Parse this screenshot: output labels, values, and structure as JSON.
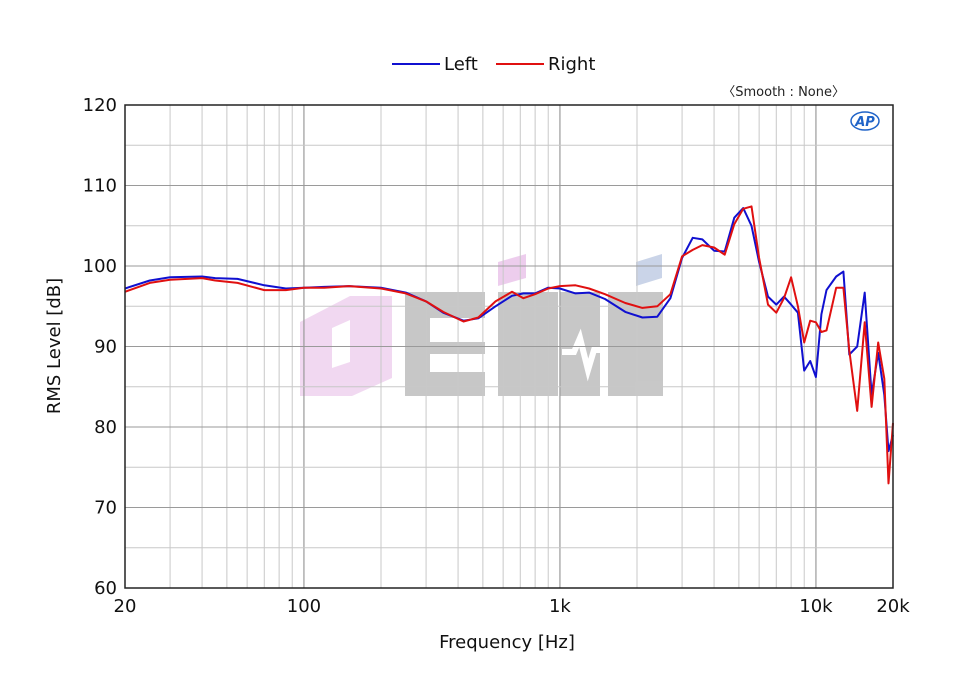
{
  "legend": {
    "left_label": "Left",
    "right_label": "Right"
  },
  "smooth_label": "〈Smooth : None〉",
  "ap_logo_text": "AP",
  "chart_data": {
    "type": "line",
    "xscale": "log",
    "xlim": [
      20,
      20000
    ],
    "ylim": [
      60,
      120
    ],
    "xlabel": "Frequency [Hz]",
    "ylabel": "RMS Level [dB]",
    "x_ticks": [
      {
        "value": 20,
        "label": "20"
      },
      {
        "value": 100,
        "label": "100"
      },
      {
        "value": 1000,
        "label": "1k"
      },
      {
        "value": 10000,
        "label": "10k"
      },
      {
        "value": 20000,
        "label": "20k"
      }
    ],
    "y_ticks": [
      {
        "value": 60,
        "label": "60"
      },
      {
        "value": 70,
        "label": "70"
      },
      {
        "value": 80,
        "label": "80"
      },
      {
        "value": 90,
        "label": "90"
      },
      {
        "value": 100,
        "label": "100"
      },
      {
        "value": 110,
        "label": "110"
      },
      {
        "value": 120,
        "label": "120"
      }
    ],
    "grid": true,
    "legend_position": "top-center",
    "series": [
      {
        "name": "Left",
        "color": "#1010d0",
        "points": [
          [
            20,
            97.2
          ],
          [
            25,
            98.2
          ],
          [
            30,
            98.6
          ],
          [
            40,
            98.7
          ],
          [
            45,
            98.5
          ],
          [
            55,
            98.4
          ],
          [
            70,
            97.6
          ],
          [
            85,
            97.2
          ],
          [
            100,
            97.3
          ],
          [
            120,
            97.4
          ],
          [
            150,
            97.5
          ],
          [
            200,
            97.3
          ],
          [
            250,
            96.7
          ],
          [
            300,
            95.6
          ],
          [
            350,
            94.2
          ],
          [
            420,
            93.2
          ],
          [
            480,
            93.5
          ],
          [
            560,
            95.0
          ],
          [
            650,
            96.3
          ],
          [
            720,
            96.6
          ],
          [
            800,
            96.6
          ],
          [
            900,
            97.3
          ],
          [
            1000,
            97.2
          ],
          [
            1150,
            96.6
          ],
          [
            1300,
            96.7
          ],
          [
            1500,
            95.9
          ],
          [
            1800,
            94.3
          ],
          [
            2100,
            93.6
          ],
          [
            2400,
            93.7
          ],
          [
            2700,
            96.0
          ],
          [
            3000,
            101.0
          ],
          [
            3300,
            103.5
          ],
          [
            3600,
            103.3
          ],
          [
            4000,
            101.9
          ],
          [
            4400,
            101.8
          ],
          [
            4800,
            106.0
          ],
          [
            5200,
            107.2
          ],
          [
            5600,
            105.0
          ],
          [
            6000,
            100.5
          ],
          [
            6500,
            96.2
          ],
          [
            7000,
            95.2
          ],
          [
            7500,
            96.2
          ],
          [
            8000,
            95.2
          ],
          [
            8500,
            94.2
          ],
          [
            9000,
            87.0
          ],
          [
            9500,
            88.2
          ],
          [
            10000,
            86.2
          ],
          [
            10500,
            94.0
          ],
          [
            11000,
            97.0
          ],
          [
            12000,
            98.7
          ],
          [
            12800,
            99.3
          ],
          [
            13500,
            89.0
          ],
          [
            14500,
            90.0
          ],
          [
            15500,
            96.7
          ],
          [
            16500,
            84.0
          ],
          [
            17500,
            89.2
          ],
          [
            18500,
            84.0
          ],
          [
            19200,
            77.0
          ],
          [
            20000,
            79.0
          ]
        ]
      },
      {
        "name": "Right",
        "color": "#e01010",
        "points": [
          [
            20,
            96.8
          ],
          [
            25,
            97.9
          ],
          [
            30,
            98.3
          ],
          [
            40,
            98.5
          ],
          [
            45,
            98.2
          ],
          [
            55,
            97.9
          ],
          [
            70,
            97.0
          ],
          [
            85,
            97.0
          ],
          [
            100,
            97.3
          ],
          [
            120,
            97.3
          ],
          [
            150,
            97.5
          ],
          [
            200,
            97.2
          ],
          [
            250,
            96.6
          ],
          [
            300,
            95.6
          ],
          [
            350,
            94.3
          ],
          [
            420,
            93.1
          ],
          [
            480,
            93.6
          ],
          [
            560,
            95.6
          ],
          [
            650,
            96.8
          ],
          [
            720,
            96.0
          ],
          [
            800,
            96.5
          ],
          [
            900,
            97.2
          ],
          [
            1000,
            97.5
          ],
          [
            1150,
            97.6
          ],
          [
            1300,
            97.2
          ],
          [
            1500,
            96.5
          ],
          [
            1800,
            95.4
          ],
          [
            2100,
            94.8
          ],
          [
            2400,
            95.0
          ],
          [
            2700,
            96.5
          ],
          [
            3000,
            101.2
          ],
          [
            3300,
            102.0
          ],
          [
            3600,
            102.6
          ],
          [
            4000,
            102.3
          ],
          [
            4400,
            101.4
          ],
          [
            4800,
            105.2
          ],
          [
            5200,
            107.1
          ],
          [
            5600,
            107.4
          ],
          [
            6000,
            101.0
          ],
          [
            6500,
            95.2
          ],
          [
            7000,
            94.2
          ],
          [
            7500,
            96.0
          ],
          [
            8000,
            98.6
          ],
          [
            8500,
            95.0
          ],
          [
            9000,
            90.5
          ],
          [
            9500,
            93.2
          ],
          [
            10000,
            93.0
          ],
          [
            10500,
            91.8
          ],
          [
            11000,
            92.0
          ],
          [
            12000,
            97.3
          ],
          [
            12800,
            97.3
          ],
          [
            13500,
            89.5
          ],
          [
            14500,
            82.0
          ],
          [
            15500,
            93.0
          ],
          [
            16500,
            82.5
          ],
          [
            17500,
            90.5
          ],
          [
            18500,
            86.0
          ],
          [
            19200,
            73.0
          ],
          [
            20000,
            80.5
          ]
        ]
      }
    ]
  }
}
